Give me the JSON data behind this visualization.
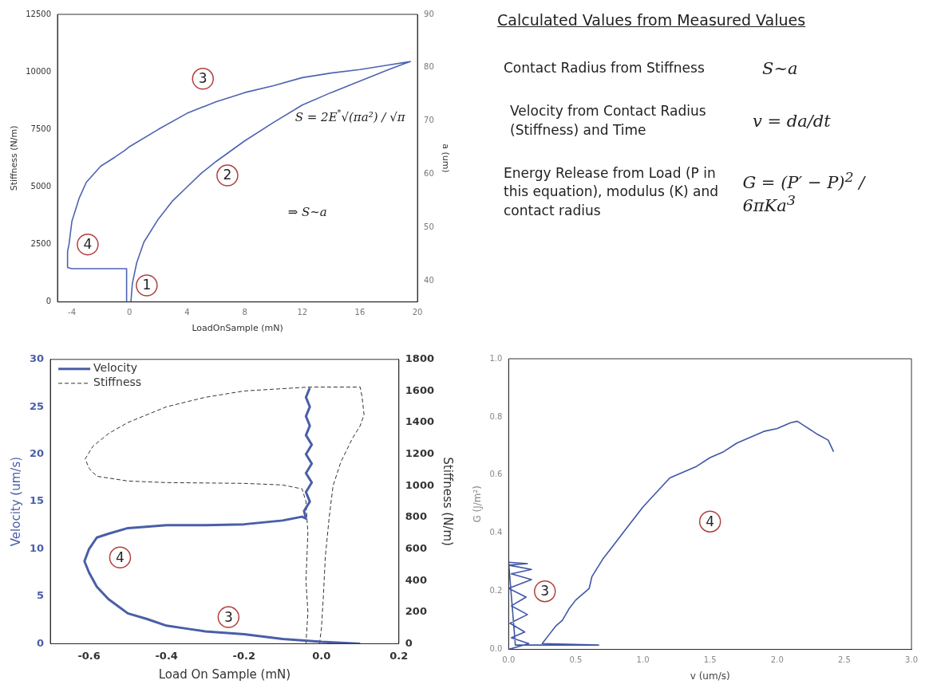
{
  "chart_data": [
    {
      "type": "line",
      "xlabel": "LoadOnSample (mN)",
      "ylabel": "Stiffness (N/m)",
      "y2label": "a (um)",
      "xlim": [
        -5,
        20
      ],
      "xticks": [
        -4,
        0,
        4,
        8,
        12,
        16,
        20
      ],
      "ylim": [
        0,
        12500
      ],
      "yticks": [
        0,
        2500,
        5000,
        7500,
        10000,
        12500
      ],
      "y2lim": [
        36,
        90
      ],
      "y2ticks": [
        40,
        50,
        60,
        70,
        80,
        90
      ],
      "series": [
        {
          "color": "#4f63b0",
          "x": [
            0.1,
            0.2,
            0.5,
            1,
            2,
            3,
            4,
            5,
            6,
            8,
            10,
            12,
            14,
            16,
            18,
            19.5,
            18,
            16,
            14,
            12,
            10,
            8,
            6,
            4,
            2,
            0,
            -0.3,
            -1,
            -2,
            -3,
            -3.5,
            -4,
            -4.2,
            -4.3,
            -4.3,
            -4,
            -2,
            -0.2,
            -0.2
          ],
          "values": [
            0,
            800,
            1700,
            2600,
            3600,
            4400,
            5000,
            5600,
            6100,
            7000,
            7800,
            8560,
            9100,
            9600,
            10100,
            10450,
            10300,
            10100,
            9950,
            9750,
            9400,
            9100,
            8700,
            8200,
            7500,
            6750,
            6600,
            6300,
            5900,
            5200,
            4500,
            3500,
            2500,
            2200,
            1500,
            1450,
            1450,
            1450,
            0
          ]
        }
      ],
      "annotations": [
        {
          "text": "3",
          "x": 5.1,
          "y": 9700
        },
        {
          "text": "2",
          "x": 6.8,
          "y": 5500
        },
        {
          "text": "4",
          "x": -2.9,
          "y": 2500
        },
        {
          "text": "1",
          "x": 1.2,
          "y": 720
        },
        "S = 2E$^{*}$√(πa²) / √π",
        "⇒ S~a"
      ]
    },
    {
      "type": "other",
      "title": "Calculated Values from Measured Values",
      "annotations": [
        "Contact Radius from Stiffness",
        "S~a",
        "Velocity from Contact Radius (Stiffness) and Time",
        "v = da/dt",
        "Energy Release from Load (P in this equation), modulus (K) and contact radius",
        "G = (P′ − P)$^{2}$ / 6πKa$^{3}$"
      ]
    },
    {
      "type": "line",
      "xlabel": "Load On Sample (mN)",
      "ylabel": "Velocity (um/s)",
      "y2label": "Stiffness (N/m)",
      "xlim": [
        -0.7,
        0.2
      ],
      "xticks": [
        -0.6,
        -0.4,
        -0.2,
        {
          "value": 0,
          "label": "0.0"
        },
        0.2
      ],
      "ylim": [
        0,
        30
      ],
      "yticks": [
        0,
        5,
        10,
        15,
        20,
        25,
        30
      ],
      "y2lim": [
        0,
        1800
      ],
      "y2ticks": [
        0,
        200,
        400,
        600,
        800,
        1000,
        1200,
        1400,
        1600,
        1800
      ],
      "legend": "top left",
      "series": [
        {
          "name": "Velocity",
          "color": "#4a5ea8",
          "x": [
            0.1,
            0,
            -0.1,
            -0.2,
            -0.3,
            -0.35,
            -0.4,
            -0.45,
            -0.5,
            -0.55,
            -0.58,
            -0.6,
            -0.612,
            -0.6,
            -0.58,
            -0.55,
            -0.5,
            -0.4,
            -0.3,
            -0.2,
            -0.1,
            -0.05,
            -0.04,
            -0.045,
            -0.03,
            -0.04,
            -0.025,
            -0.04,
            -0.025,
            -0.04,
            -0.025,
            -0.04,
            -0.03,
            -0.04,
            -0.03,
            -0.04,
            -0.03
          ],
          "values": [
            0,
            0.2,
            0.5,
            1.0,
            1.3,
            1.6,
            1.9,
            2.6,
            3.2,
            4.7,
            6,
            7.5,
            8.7,
            10,
            11.2,
            11.6,
            12.2,
            12.5,
            12.5,
            12.6,
            13.0,
            13.4,
            13.2,
            14,
            15,
            16,
            17,
            18,
            19,
            20,
            21,
            22,
            23,
            24,
            25,
            26,
            27
          ]
        },
        {
          "name": "Stiffness",
          "color": "#333333",
          "axis": "y2",
          "line_style": "dashed",
          "x": [
            -0.005,
            0,
            0.005,
            0.01,
            0.02,
            0.03,
            0.05,
            0.08,
            0.1,
            0.11,
            0.105,
            0.1,
            -0.03,
            -0.2,
            -0.3,
            -0.4,
            -0.5,
            -0.55,
            -0.59,
            -0.61,
            -0.6,
            -0.58,
            -0.5,
            -0.4,
            -0.2,
            -0.1,
            -0.05,
            -0.04,
            -0.035,
            -0.04,
            -0.035,
            -0.04
          ],
          "values": [
            0,
            100,
            300,
            550,
            800,
            1000,
            1150,
            1300,
            1380,
            1450,
            1560,
            1625,
            1625,
            1600,
            1560,
            1500,
            1400,
            1330,
            1250,
            1170,
            1110,
            1060,
            1030,
            1020,
            1015,
            1005,
            980,
            900,
            700,
            400,
            200,
            0
          ]
        }
      ],
      "annotations": [
        {
          "text": "4",
          "x": -0.52,
          "y": 9.1
        },
        {
          "text": "3",
          "x": -0.24,
          "y": 2.8
        }
      ]
    },
    {
      "type": "line",
      "xlabel": "v (um/s)",
      "ylabel": "G (J/m²)",
      "xlim": [
        0,
        3
      ],
      "xticks": [
        {
          "value": 0,
          "label": "0.0"
        },
        0.5,
        {
          "value": 1,
          "label": "1.0"
        },
        1.5,
        {
          "value": 2,
          "label": "2.0"
        },
        2.5,
        {
          "value": 3,
          "label": "3.0"
        }
      ],
      "ylim": [
        0,
        1
      ],
      "yticks": [
        {
          "value": 0,
          "label": "0.0"
        },
        0.2,
        0.4,
        0.6,
        0.8,
        {
          "value": 1,
          "label": "1.0"
        }
      ],
      "series": [
        {
          "color": "#3f57a6",
          "x": [
            0,
            0.15,
            0.02,
            0.12,
            0.01,
            0.14,
            0.02,
            0.13,
            0,
            0.17,
            0.02,
            0.17,
            0,
            0.14,
            0,
            0.05,
            0.67,
            0.25,
            0.3,
            0.35,
            0.4,
            0.45,
            0.5,
            0.6,
            0.62,
            0.7,
            0.8,
            0.9,
            1.0,
            1.1,
            1.2,
            1.3,
            1.4,
            1.5,
            1.6,
            1.7,
            1.8,
            1.9,
            2.0,
            2.1,
            2.15,
            2.2,
            2.3,
            2.38,
            2.42
          ],
          "values": [
            0,
            0.02,
            0.04,
            0.06,
            0.09,
            0.12,
            0.15,
            0.18,
            0.21,
            0.24,
            0.26,
            0.275,
            0.29,
            0.295,
            0.3,
            0.015,
            0.015,
            0.02,
            0.05,
            0.08,
            0.1,
            0.14,
            0.17,
            0.21,
            0.25,
            0.31,
            0.37,
            0.43,
            0.49,
            0.54,
            0.59,
            0.61,
            0.63,
            0.66,
            0.68,
            0.71,
            0.73,
            0.75,
            0.76,
            0.78,
            0.785,
            0.77,
            0.74,
            0.72,
            0.68
          ]
        }
      ],
      "annotations": [
        {
          "text": "3",
          "x": 0.27,
          "y": 0.2
        },
        {
          "text": "4",
          "x": 1.5,
          "y": 0.44
        }
      ]
    }
  ]
}
